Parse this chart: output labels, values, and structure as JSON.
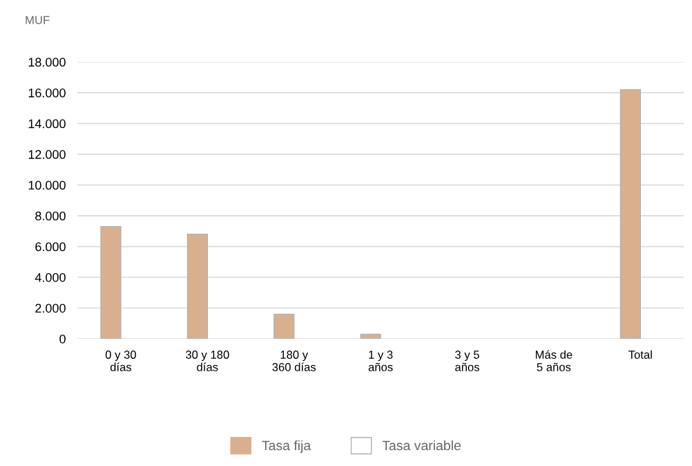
{
  "chart_data": {
    "type": "bar",
    "ylabel": "MUF",
    "categories": [
      "0 y 30\ndías",
      "30 y 180\ndías",
      "180 y\n360 días",
      "1 y 3\naños",
      "3 y 5\naños",
      "Más de\n5 años",
      "Total"
    ],
    "series": [
      {
        "name": "Tasa fija",
        "color": "#d9b08f",
        "values": [
          7300,
          6800,
          1600,
          300,
          null,
          null,
          16200
        ]
      },
      {
        "name": "Tasa variable",
        "color": "#ffffff",
        "values": [
          null,
          null,
          null,
          null,
          null,
          null,
          null
        ]
      }
    ],
    "ylim": [
      0,
      18000
    ],
    "yticks": [
      {
        "value": 0,
        "label": "0"
      },
      {
        "value": 2000,
        "label": "2.000"
      },
      {
        "value": 4000,
        "label": "4.000"
      },
      {
        "value": 6000,
        "label": "6.000"
      },
      {
        "value": 8000,
        "label": "8.000"
      },
      {
        "value": 10000,
        "label": "10.000"
      },
      {
        "value": 12000,
        "label": "12.000"
      },
      {
        "value": 14000,
        "label": "14.000"
      },
      {
        "value": 16000,
        "label": "16.000"
      },
      {
        "value": 18000,
        "label": "18.000"
      }
    ],
    "grid": "y",
    "legend": "bottom"
  }
}
